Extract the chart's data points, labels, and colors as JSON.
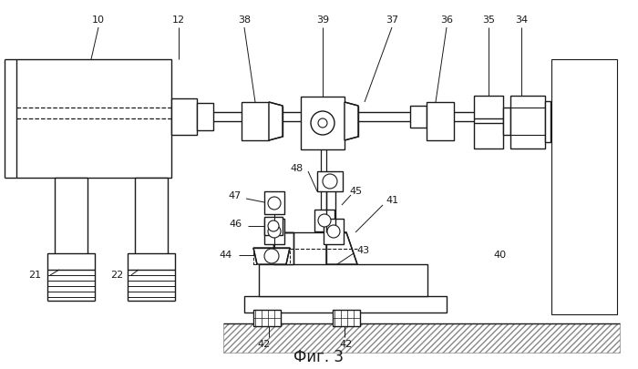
{
  "title": "Фиг. 3",
  "bg_color": "#ffffff",
  "lc": "#1a1a1a",
  "figsize": [
    7.0,
    4.05
  ],
  "dpi": 100
}
